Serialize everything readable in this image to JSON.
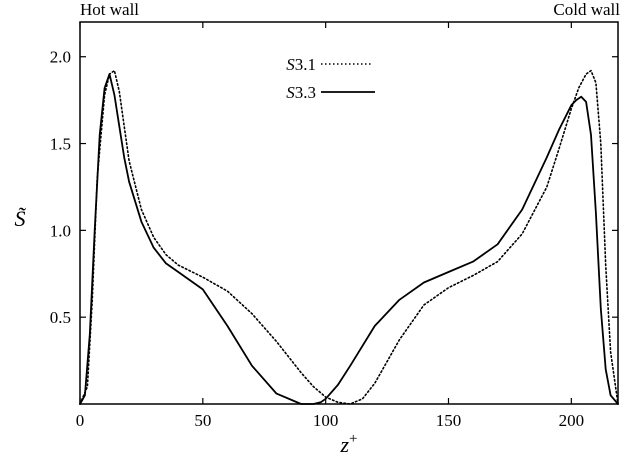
{
  "chart_data": {
    "type": "line",
    "annotations": {
      "left": "Hot wall",
      "right": "Cold wall"
    },
    "xlabel": "z",
    "xlabel_sup": "+",
    "ylabel": "S̃",
    "xlim": [
      0,
      219
    ],
    "ylim": [
      0,
      2.2
    ],
    "xticks": [
      0,
      50,
      100,
      150,
      200
    ],
    "xtick_labels": [
      "0",
      "50",
      "100",
      "150",
      "200"
    ],
    "yticks": [
      0.5,
      1.0,
      1.5,
      2.0
    ],
    "ytick_labels": [
      "0.5",
      "1.0",
      "1.5",
      "2.0"
    ],
    "grid": false,
    "legend_position": "top-center",
    "series": [
      {
        "name_prefix": "S",
        "name_suffix": "3.1",
        "style": "dotted",
        "color": "#000000",
        "x": [
          0,
          3,
          5,
          7,
          10,
          12,
          14,
          16,
          18,
          20,
          25,
          30,
          35,
          40,
          50,
          60,
          70,
          80,
          90,
          95,
          100,
          105,
          110,
          115,
          120,
          130,
          140,
          150,
          160,
          170,
          180,
          190,
          195,
          200,
          203,
          206,
          208,
          210,
          212,
          214,
          216,
          219
        ],
        "y": [
          0,
          0.1,
          0.6,
          1.3,
          1.78,
          1.9,
          1.92,
          1.8,
          1.6,
          1.4,
          1.12,
          0.96,
          0.86,
          0.8,
          0.73,
          0.65,
          0.52,
          0.36,
          0.18,
          0.1,
          0.04,
          0.01,
          0.0,
          0.03,
          0.12,
          0.37,
          0.57,
          0.67,
          0.74,
          0.82,
          0.98,
          1.25,
          1.47,
          1.7,
          1.82,
          1.9,
          1.92,
          1.85,
          1.5,
          0.8,
          0.3,
          0.0
        ]
      },
      {
        "name_prefix": "S",
        "name_suffix": "3.3",
        "style": "solid",
        "color": "#000000",
        "x": [
          0,
          2,
          4,
          6,
          8,
          10,
          12,
          14,
          16,
          18,
          20,
          25,
          30,
          35,
          40,
          50,
          60,
          70,
          80,
          90,
          95,
          98,
          100,
          105,
          110,
          120,
          130,
          140,
          150,
          160,
          170,
          180,
          190,
          195,
          200,
          202,
          204,
          206,
          208,
          210,
          212,
          214,
          216,
          219
        ],
        "y": [
          0,
          0.05,
          0.4,
          1.0,
          1.55,
          1.82,
          1.9,
          1.78,
          1.6,
          1.42,
          1.28,
          1.05,
          0.9,
          0.81,
          0.76,
          0.66,
          0.45,
          0.22,
          0.06,
          0.0,
          0.0,
          0.01,
          0.03,
          0.11,
          0.22,
          0.45,
          0.6,
          0.7,
          0.76,
          0.82,
          0.92,
          1.12,
          1.42,
          1.58,
          1.72,
          1.75,
          1.77,
          1.74,
          1.55,
          1.1,
          0.55,
          0.2,
          0.05,
          0.0
        ]
      }
    ]
  }
}
